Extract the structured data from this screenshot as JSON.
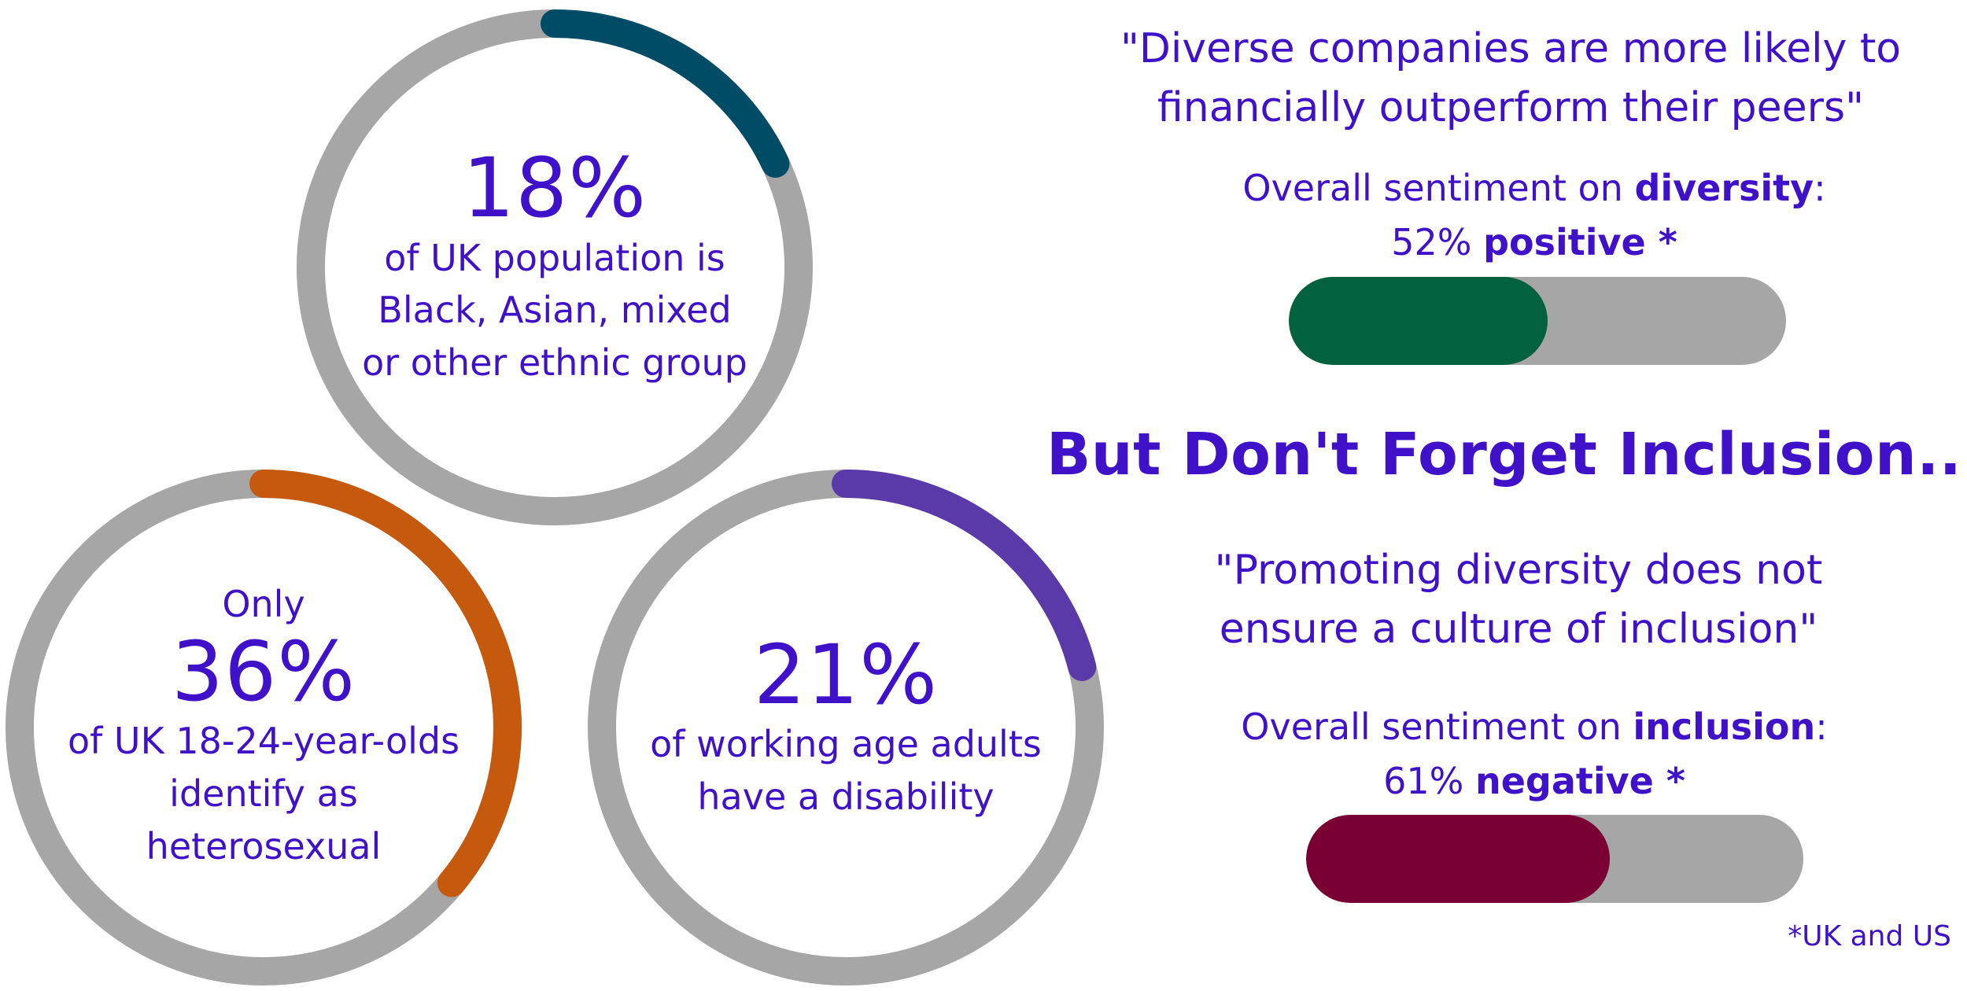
{
  "rings": [
    {
      "id": "ethnic",
      "percent": 18,
      "pre": "",
      "pct_label": "18%",
      "desc": [
        "of UK population is",
        "Black, Asian, mixed",
        "or other ethnic group"
      ],
      "color": "#004c66"
    },
    {
      "id": "heterosexual",
      "percent": 36,
      "pre": "Only",
      "pct_label": "36%",
      "desc": [
        "of UK 18-24-year-olds",
        "identify as",
        "heterosexual"
      ],
      "color": "#c55a0e"
    },
    {
      "id": "disability",
      "percent": 21,
      "pre": "",
      "pct_label": "21%",
      "desc": [
        "of working age adults",
        "have a disability"
      ],
      "color": "#5a3aa8"
    }
  ],
  "ring_track_color": "#a6a6a6",
  "diversity": {
    "quote_line1": "\"Diverse companies are more likely to",
    "quote_line2": "financially outperform their peers\"",
    "sentiment_prefix": "Overall sentiment on ",
    "sentiment_topic": "diversity",
    "sentiment_colon": ":",
    "value_text": "52% ",
    "value_label": "positive *",
    "fill_fraction": 0.52,
    "fill_color": "#02623f"
  },
  "headline": "But Don't Forget Inclusion...",
  "inclusion": {
    "quote_line1": "\"Promoting diversity does not",
    "quote_line2": "ensure a culture of inclusion\"",
    "sentiment_prefix": "Overall sentiment on ",
    "sentiment_topic": "inclusion",
    "sentiment_colon": ":",
    "value_text": "61% ",
    "value_label": "negative *",
    "fill_fraction": 0.61,
    "fill_color": "#7a0033"
  },
  "footnote": "*UK and US"
}
